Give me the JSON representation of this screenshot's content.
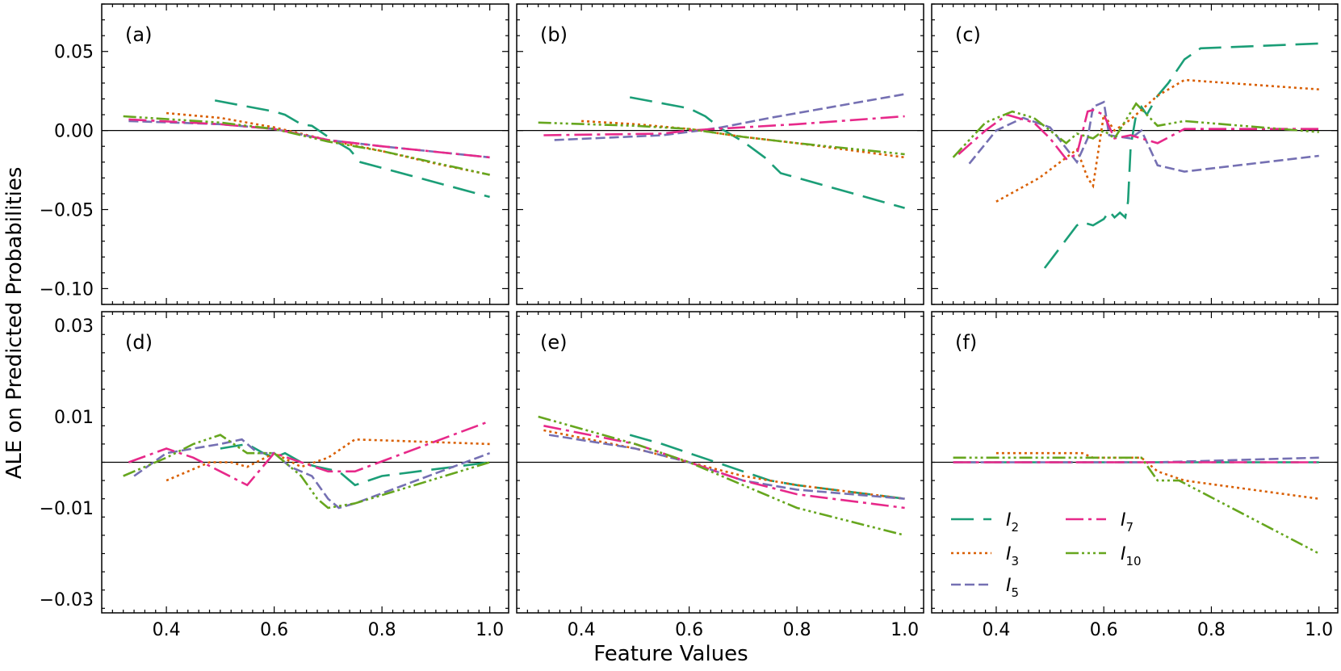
{
  "figure": {
    "ylabel": "ALE on Predicted Probabilities",
    "xlabel": "Feature Values"
  },
  "legend": {
    "placement": "lower-left of panel (f)",
    "entries": [
      {
        "series": "I2",
        "base": "I",
        "sub": "2"
      },
      {
        "series": "I7",
        "base": "I",
        "sub": "7"
      },
      {
        "series": "I3",
        "base": "I",
        "sub": "3"
      },
      {
        "series": "I10",
        "base": "I",
        "sub": "10"
      },
      {
        "series": "I5",
        "base": "I",
        "sub": "5"
      }
    ]
  },
  "series_styles": {
    "I2": {
      "color": "#1b9e77",
      "dash": "28,12"
    },
    "I3": {
      "color": "#d95f02",
      "dash": "3,4"
    },
    "I5": {
      "color": "#7570b3",
      "dash": "12,5"
    },
    "I7": {
      "color": "#e7298a",
      "dash": "22,6,4,6"
    },
    "I10": {
      "color": "#66a61e",
      "dash": "16,4,3,4,3,4,3,4"
    }
  },
  "chart_data": [
    {
      "panel": "(a)",
      "type": "line",
      "xlim": [
        0.28,
        1.035
      ],
      "ylim": [
        -0.11,
        0.08
      ],
      "yticks": [
        0.05,
        0.0,
        -0.05,
        -0.1
      ],
      "ytick_labels": [
        "0.05",
        "0.00",
        "−0.05",
        "−0.10"
      ],
      "xticks": [
        0.4,
        0.6,
        0.8,
        1.0
      ],
      "xtick_labels": [],
      "series": [
        {
          "name": "I2",
          "x": [
            0.49,
            0.6,
            0.62,
            0.65,
            0.67,
            0.7,
            0.72,
            0.74,
            0.76,
            1.0
          ],
          "y": [
            0.019,
            0.012,
            0.01,
            0.004,
            0.003,
            -0.004,
            -0.008,
            -0.012,
            -0.02,
            -0.042
          ]
        },
        {
          "name": "I3",
          "x": [
            0.4,
            0.5,
            0.6,
            0.7,
            0.8,
            0.9,
            1.0
          ],
          "y": [
            0.011,
            0.008,
            0.002,
            -0.006,
            -0.013,
            -0.021,
            -0.028
          ]
        },
        {
          "name": "I5",
          "x": [
            0.33,
            0.5,
            0.6,
            0.7,
            0.8,
            1.0
          ],
          "y": [
            0.006,
            0.004,
            0.001,
            -0.006,
            -0.01,
            -0.017
          ]
        },
        {
          "name": "I7",
          "x": [
            0.33,
            0.5,
            0.6,
            0.7,
            0.8,
            1.0
          ],
          "y": [
            0.007,
            0.004,
            0.001,
            -0.006,
            -0.01,
            -0.017
          ]
        },
        {
          "name": "I10",
          "x": [
            0.32,
            0.5,
            0.6,
            0.7,
            0.8,
            1.0
          ],
          "y": [
            0.009,
            0.005,
            0.001,
            -0.007,
            -0.013,
            -0.028
          ]
        }
      ]
    },
    {
      "panel": "(b)",
      "type": "line",
      "xlim": [
        0.28,
        1.035
      ],
      "ylim": [
        -0.11,
        0.08
      ],
      "yticks": [
        0.05,
        0.0,
        -0.05,
        -0.1
      ],
      "ytick_labels": [],
      "xticks": [
        0.4,
        0.6,
        0.8,
        1.0
      ],
      "xtick_labels": [],
      "series": [
        {
          "name": "I2",
          "x": [
            0.49,
            0.6,
            0.63,
            0.66,
            0.7,
            0.74,
            0.77,
            1.0
          ],
          "y": [
            0.021,
            0.014,
            0.009,
            0.001,
            -0.007,
            -0.017,
            -0.027,
            -0.049
          ]
        },
        {
          "name": "I3",
          "x": [
            0.4,
            0.5,
            0.6,
            0.7,
            0.8,
            1.0
          ],
          "y": [
            0.006,
            0.004,
            0.001,
            -0.004,
            -0.008,
            -0.017
          ]
        },
        {
          "name": "I5",
          "x": [
            0.35,
            0.55,
            0.62,
            0.66,
            0.75,
            1.0
          ],
          "y": [
            -0.006,
            -0.003,
            0.0,
            0.002,
            0.008,
            0.023
          ]
        },
        {
          "name": "I7",
          "x": [
            0.33,
            0.55,
            0.6,
            0.7,
            0.8,
            1.0
          ],
          "y": [
            -0.003,
            -0.002,
            0.0,
            0.002,
            0.004,
            0.009
          ]
        },
        {
          "name": "I10",
          "x": [
            0.32,
            0.5,
            0.6,
            0.7,
            0.8,
            1.0
          ],
          "y": [
            0.005,
            0.003,
            0.001,
            -0.004,
            -0.008,
            -0.015
          ]
        }
      ]
    },
    {
      "panel": "(c)",
      "type": "line",
      "xlim": [
        0.28,
        1.035
      ],
      "ylim": [
        -0.11,
        0.08
      ],
      "yticks": [
        0.05,
        0.0,
        -0.05,
        -0.1
      ],
      "ytick_labels": [],
      "xticks": [
        0.4,
        0.6,
        0.8,
        1.0
      ],
      "xtick_labels": [],
      "series": [
        {
          "name": "I2",
          "x": [
            0.49,
            0.55,
            0.56,
            0.58,
            0.6,
            0.61,
            0.62,
            0.63,
            0.64,
            0.645,
            0.65,
            0.66,
            0.67,
            0.68,
            0.7,
            0.72,
            0.75,
            0.78,
            1.0
          ],
          "y": [
            -0.087,
            -0.06,
            -0.058,
            -0.06,
            -0.056,
            -0.051,
            -0.055,
            -0.052,
            -0.055,
            -0.045,
            -0.01,
            0.01,
            0.015,
            0.01,
            0.022,
            0.03,
            0.045,
            0.052,
            0.055
          ]
        },
        {
          "name": "I3",
          "x": [
            0.4,
            0.48,
            0.55,
            0.57,
            0.58,
            0.6,
            0.62,
            0.65,
            0.7,
            0.75,
            1.0
          ],
          "y": [
            -0.045,
            -0.03,
            -0.012,
            -0.03,
            -0.035,
            0.01,
            0.0,
            0.007,
            0.022,
            0.032,
            0.026
          ]
        },
        {
          "name": "I5",
          "x": [
            0.35,
            0.4,
            0.45,
            0.5,
            0.55,
            0.57,
            0.58,
            0.6,
            0.61,
            0.65,
            0.67,
            0.7,
            0.75,
            1.0
          ],
          "y": [
            -0.021,
            0.0,
            0.008,
            0.002,
            -0.02,
            -0.005,
            0.015,
            0.018,
            -0.003,
            -0.005,
            0.0,
            -0.022,
            -0.026,
            -0.016
          ]
        },
        {
          "name": "I7",
          "x": [
            0.33,
            0.38,
            0.42,
            0.47,
            0.5,
            0.53,
            0.55,
            0.57,
            0.58,
            0.6,
            0.62,
            0.65,
            0.7,
            0.75,
            1.0
          ],
          "y": [
            -0.015,
            0.0,
            0.01,
            0.005,
            -0.005,
            -0.018,
            -0.015,
            0.012,
            0.013,
            0.01,
            -0.005,
            -0.003,
            -0.008,
            0.001,
            0.001
          ]
        },
        {
          "name": "I10",
          "x": [
            0.32,
            0.38,
            0.43,
            0.47,
            0.5,
            0.53,
            0.55,
            0.58,
            0.6,
            0.62,
            0.66,
            0.7,
            0.75,
            1.0
          ],
          "y": [
            -0.017,
            0.005,
            0.012,
            0.008,
            0.0,
            -0.008,
            -0.002,
            -0.005,
            0.0,
            -0.005,
            0.017,
            0.003,
            0.006,
            -0.001
          ]
        }
      ]
    },
    {
      "panel": "(d)",
      "type": "line",
      "xlim": [
        0.28,
        1.035
      ],
      "ylim": [
        -0.033,
        0.033
      ],
      "yticks": [
        0.03,
        0.01,
        -0.01,
        -0.03
      ],
      "ytick_labels": [
        "0.03",
        "0.01",
        "−0.01",
        "−0.03"
      ],
      "xticks": [
        0.4,
        0.6,
        0.8,
        1.0
      ],
      "xtick_labels": [
        "0.4",
        "0.6",
        "0.8",
        "1.0"
      ],
      "series": [
        {
          "name": "I2",
          "x": [
            0.5,
            0.55,
            0.58,
            0.6,
            0.62,
            0.65,
            0.68,
            0.72,
            0.75,
            0.8,
            1.0
          ],
          "y": [
            0.003,
            0.004,
            0.002,
            0.001,
            0.002,
            0.0,
            -0.001,
            -0.002,
            -0.005,
            -0.003,
            0.0
          ]
        },
        {
          "name": "I3",
          "x": [
            0.4,
            0.48,
            0.52,
            0.55,
            0.6,
            0.65,
            0.7,
            0.75,
            1.0
          ],
          "y": [
            -0.004,
            0.0,
            0.0,
            -0.001,
            0.002,
            -0.001,
            0.001,
            0.005,
            0.004
          ]
        },
        {
          "name": "I5",
          "x": [
            0.34,
            0.4,
            0.45,
            0.5,
            0.54,
            0.57,
            0.6,
            0.63,
            0.67,
            0.7,
            0.72,
            0.75,
            1.0
          ],
          "y": [
            -0.003,
            0.002,
            0.003,
            0.004,
            0.005,
            0.002,
            0.002,
            -0.001,
            -0.003,
            -0.008,
            -0.01,
            -0.009,
            0.002
          ]
        },
        {
          "name": "I7",
          "x": [
            0.33,
            0.4,
            0.45,
            0.5,
            0.55,
            0.6,
            0.65,
            0.7,
            0.75,
            1.0
          ],
          "y": [
            0.0,
            0.003,
            0.001,
            -0.002,
            -0.005,
            0.002,
            0.0,
            -0.002,
            -0.002,
            0.009
          ]
        },
        {
          "name": "I10",
          "x": [
            0.32,
            0.4,
            0.45,
            0.5,
            0.55,
            0.6,
            0.65,
            0.68,
            0.7,
            0.75,
            1.0
          ],
          "y": [
            -0.003,
            0.001,
            0.004,
            0.006,
            0.002,
            0.002,
            -0.003,
            -0.008,
            -0.01,
            -0.009,
            0.0
          ]
        }
      ]
    },
    {
      "panel": "(e)",
      "type": "line",
      "xlim": [
        0.28,
        1.035
      ],
      "ylim": [
        -0.033,
        0.033
      ],
      "yticks": [
        0.03,
        0.01,
        -0.01,
        -0.03
      ],
      "ytick_labels": [],
      "xticks": [
        0.4,
        0.6,
        0.8,
        1.0
      ],
      "xtick_labels": [
        "0.4",
        "0.6",
        "0.8",
        "1.0"
      ],
      "series": [
        {
          "name": "I2",
          "x": [
            0.49,
            0.55,
            0.6,
            0.65,
            0.7,
            0.75,
            0.8,
            1.0
          ],
          "y": [
            0.006,
            0.004,
            0.002,
            0.0,
            -0.002,
            -0.004,
            -0.005,
            -0.008
          ]
        },
        {
          "name": "I3",
          "x": [
            0.33,
            0.5,
            0.6,
            0.7,
            0.8,
            1.0
          ],
          "y": [
            0.007,
            0.003,
            0.0,
            -0.003,
            -0.005,
            -0.008
          ]
        },
        {
          "name": "I5",
          "x": [
            0.34,
            0.5,
            0.6,
            0.7,
            0.8,
            1.0
          ],
          "y": [
            0.006,
            0.003,
            0.0,
            -0.004,
            -0.006,
            -0.008
          ]
        },
        {
          "name": "I7",
          "x": [
            0.33,
            0.5,
            0.6,
            0.7,
            0.8,
            1.0
          ],
          "y": [
            0.008,
            0.004,
            0.0,
            -0.004,
            -0.007,
            -0.01
          ]
        },
        {
          "name": "I10",
          "x": [
            0.32,
            0.5,
            0.6,
            0.7,
            0.8,
            1.0
          ],
          "y": [
            0.01,
            0.004,
            0.0,
            -0.005,
            -0.01,
            -0.016
          ]
        }
      ]
    },
    {
      "panel": "(f)",
      "type": "line",
      "xlim": [
        0.28,
        1.035
      ],
      "ylim": [
        -0.033,
        0.033
      ],
      "yticks": [
        0.03,
        0.01,
        -0.01,
        -0.03
      ],
      "ytick_labels": [],
      "xticks": [
        0.4,
        0.6,
        0.8,
        1.0
      ],
      "xtick_labels": [
        "0.4",
        "0.6",
        "0.8",
        "1.0"
      ],
      "series": [
        {
          "name": "I2",
          "x": [
            0.32,
            0.6,
            1.0
          ],
          "y": [
            0.0,
            0.0,
            0.0
          ]
        },
        {
          "name": "I3",
          "x": [
            0.4,
            0.56,
            0.58,
            0.67,
            0.7,
            0.75,
            1.0
          ],
          "y": [
            0.002,
            0.002,
            0.001,
            0.001,
            -0.002,
            -0.004,
            -0.008
          ]
        },
        {
          "name": "I5",
          "x": [
            0.32,
            0.7,
            1.0
          ],
          "y": [
            0.0,
            0.0,
            0.001
          ]
        },
        {
          "name": "I7",
          "x": [
            0.32,
            0.7,
            1.0
          ],
          "y": [
            0.0,
            0.0,
            0.0
          ]
        },
        {
          "name": "I10",
          "x": [
            0.32,
            0.58,
            0.67,
            0.7,
            0.74,
            1.0
          ],
          "y": [
            0.001,
            0.001,
            0.001,
            -0.004,
            -0.004,
            -0.02
          ]
        }
      ]
    }
  ]
}
